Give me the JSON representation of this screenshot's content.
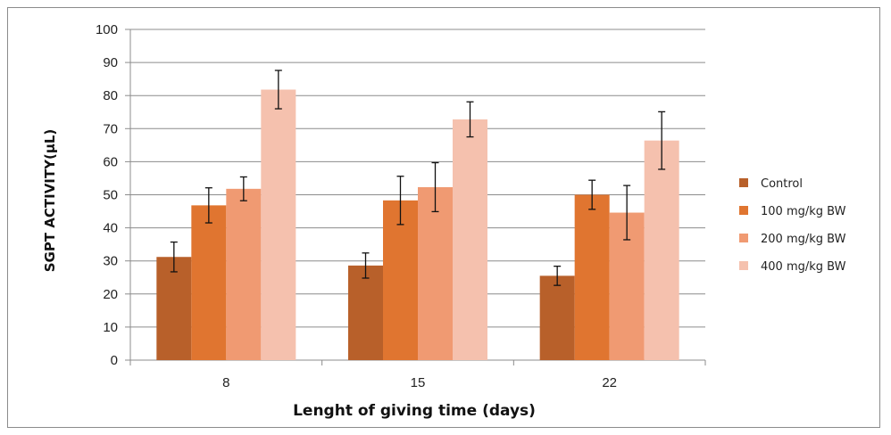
{
  "chart_data": {
    "type": "bar",
    "title": "",
    "xlabel": "Lenght of giving time (days)",
    "ylabel": "SGPT ACTIVITY(µL)",
    "categories": [
      "8",
      "15",
      "22"
    ],
    "ylim": [
      0,
      100
    ],
    "yticks": [
      0,
      10,
      20,
      30,
      40,
      50,
      60,
      70,
      80,
      90,
      100
    ],
    "grid": true,
    "legend_position": "right",
    "error_bars": true,
    "series": [
      {
        "name": "Control",
        "color": "#b8602a",
        "values": [
          31.2,
          28.6,
          25.5
        ],
        "errors": [
          4.5,
          3.8,
          2.9
        ]
      },
      {
        "name": "100 mg/kg BW",
        "color": "#e07530",
        "values": [
          46.8,
          48.3,
          50.0
        ],
        "errors": [
          5.3,
          7.3,
          4.4
        ]
      },
      {
        "name": "200 mg/kg BW",
        "color": "#f09a72",
        "values": [
          51.8,
          52.3,
          44.6
        ],
        "errors": [
          3.6,
          7.4,
          8.2
        ]
      },
      {
        "name": "400 mg/kg BW",
        "color": "#f5c1ae",
        "values": [
          81.8,
          72.8,
          66.4
        ],
        "errors": [
          5.8,
          5.3,
          8.7
        ]
      }
    ]
  }
}
